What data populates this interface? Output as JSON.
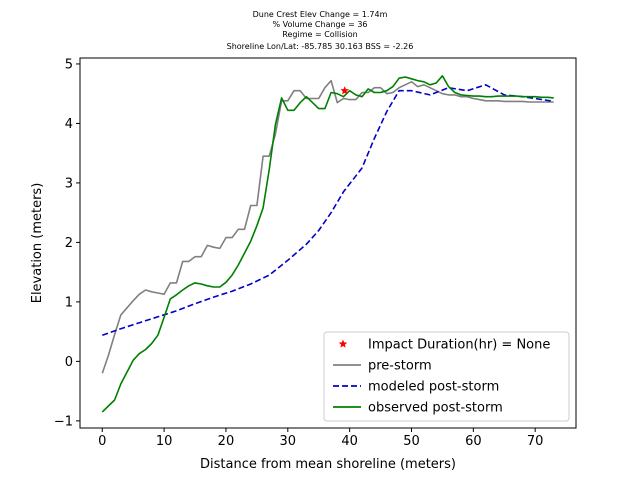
{
  "chart_data": {
    "type": "line",
    "title_lines": [
      "Dune Crest Elev Change = 1.74m",
      "% Volume Change = 36",
      "Regime = Collision",
      "Shoreline Lon/Lat: -85.785 30.163   BSS = -2.26"
    ],
    "xlabel": "Distance from mean shoreline (meters)",
    "ylabel": "Elevation (meters)",
    "xlim": [
      -3.6,
      76.6
    ],
    "ylim": [
      -1.12,
      5.1
    ],
    "xticks": [
      0,
      10,
      20,
      30,
      40,
      50,
      60,
      70
    ],
    "yticks": [
      -1,
      0,
      1,
      2,
      3,
      4,
      5
    ],
    "grid": false,
    "legend_position": "lower-right",
    "series": [
      {
        "name": "pre-storm",
        "color": "#808080",
        "style": "solid",
        "x": [
          0,
          1,
          2,
          3,
          4,
          5,
          6,
          7,
          8,
          9,
          10,
          11,
          12,
          13,
          14,
          15,
          16,
          17,
          18,
          19,
          20,
          21,
          22,
          23,
          24,
          25,
          26,
          27,
          28,
          29,
          30,
          31,
          32,
          33,
          34,
          35,
          36,
          37,
          38,
          39,
          40,
          41,
          42,
          43,
          44,
          45,
          46,
          47,
          48,
          49,
          50,
          51,
          52,
          53,
          54,
          55,
          56,
          57,
          58,
          59,
          60,
          61,
          62,
          63,
          64,
          65,
          66,
          67,
          68,
          69,
          70,
          71,
          72,
          73
        ],
        "y": [
          -0.2,
          0.1,
          0.45,
          0.78,
          0.9,
          1.02,
          1.13,
          1.2,
          1.17,
          1.15,
          1.13,
          1.32,
          1.32,
          1.68,
          1.68,
          1.76,
          1.76,
          1.95,
          1.92,
          1.9,
          2.08,
          2.08,
          2.22,
          2.22,
          2.62,
          2.62,
          3.45,
          3.45,
          3.82,
          4.38,
          4.38,
          4.55,
          4.55,
          4.42,
          4.42,
          4.42,
          4.6,
          4.72,
          4.35,
          4.42,
          4.4,
          4.4,
          4.52,
          4.52,
          4.6,
          4.6,
          4.5,
          4.52,
          4.6,
          4.65,
          4.7,
          4.62,
          4.65,
          4.6,
          4.55,
          4.5,
          4.48,
          4.48,
          4.45,
          4.45,
          4.42,
          4.4,
          4.38,
          4.38,
          4.38,
          4.37,
          4.37,
          4.37,
          4.37,
          4.36,
          4.36,
          4.36,
          4.36,
          4.36
        ]
      },
      {
        "name": "modeled post-storm",
        "color": "#0000cc",
        "style": "dashed",
        "x": [
          0,
          3,
          6,
          9,
          12,
          15,
          18,
          21,
          24,
          27,
          30,
          33,
          35,
          37,
          39,
          42,
          44,
          46,
          48,
          50,
          53,
          56,
          59,
          62,
          65,
          68,
          70,
          73
        ],
        "y": [
          0.44,
          0.55,
          0.65,
          0.75,
          0.85,
          0.97,
          1.08,
          1.18,
          1.3,
          1.45,
          1.7,
          1.97,
          2.2,
          2.5,
          2.85,
          3.25,
          3.75,
          4.2,
          4.55,
          4.55,
          4.48,
          4.6,
          4.55,
          4.65,
          4.48,
          4.45,
          4.42,
          4.37
        ]
      },
      {
        "name": "observed post-storm",
        "color": "#008000",
        "style": "solid",
        "x": [
          0,
          1,
          2,
          3,
          4,
          5,
          6,
          7,
          8,
          9,
          10,
          11,
          12,
          13,
          14,
          15,
          16,
          17,
          18,
          19,
          20,
          21,
          22,
          23,
          24,
          25,
          26,
          27,
          28,
          29,
          30,
          31,
          32,
          33,
          34,
          35,
          36,
          37,
          38,
          39,
          40,
          41,
          42,
          43,
          44,
          45,
          46,
          47,
          48,
          49,
          50,
          51,
          52,
          53,
          54,
          55,
          56,
          57,
          58,
          59,
          60,
          61,
          62,
          63,
          64,
          65,
          66,
          67,
          68,
          69,
          70,
          71,
          72,
          73
        ],
        "y": [
          -0.85,
          -0.75,
          -0.65,
          -0.38,
          -0.18,
          0.02,
          0.13,
          0.2,
          0.3,
          0.44,
          0.74,
          1.05,
          1.12,
          1.2,
          1.27,
          1.32,
          1.3,
          1.27,
          1.25,
          1.25,
          1.33,
          1.45,
          1.62,
          1.82,
          2.02,
          2.28,
          2.58,
          3.22,
          3.98,
          4.43,
          4.22,
          4.22,
          4.35,
          4.45,
          4.35,
          4.25,
          4.25,
          4.52,
          4.5,
          4.45,
          4.55,
          4.48,
          4.45,
          4.58,
          4.52,
          4.52,
          4.55,
          4.62,
          4.76,
          4.78,
          4.75,
          4.72,
          4.7,
          4.65,
          4.68,
          4.8,
          4.62,
          4.52,
          4.48,
          4.47,
          4.46,
          4.46,
          4.45,
          4.45,
          4.46,
          4.46,
          4.46,
          4.46,
          4.45,
          4.45,
          4.45,
          4.44,
          4.44,
          4.43
        ]
      }
    ],
    "marker": {
      "name": "Impact Duration(hr) = None",
      "color": "#ff0000",
      "symbol": "star",
      "x": 39.2,
      "y": 4.55
    },
    "legend_entries": [
      {
        "label": "Impact Duration(hr) = None",
        "kind": "marker",
        "color": "#ff0000"
      },
      {
        "label": "pre-storm",
        "kind": "solid",
        "color": "#808080"
      },
      {
        "label": "modeled post-storm",
        "kind": "dashed",
        "color": "#0000cc"
      },
      {
        "label": "observed post-storm",
        "kind": "solid",
        "color": "#008000"
      }
    ]
  }
}
